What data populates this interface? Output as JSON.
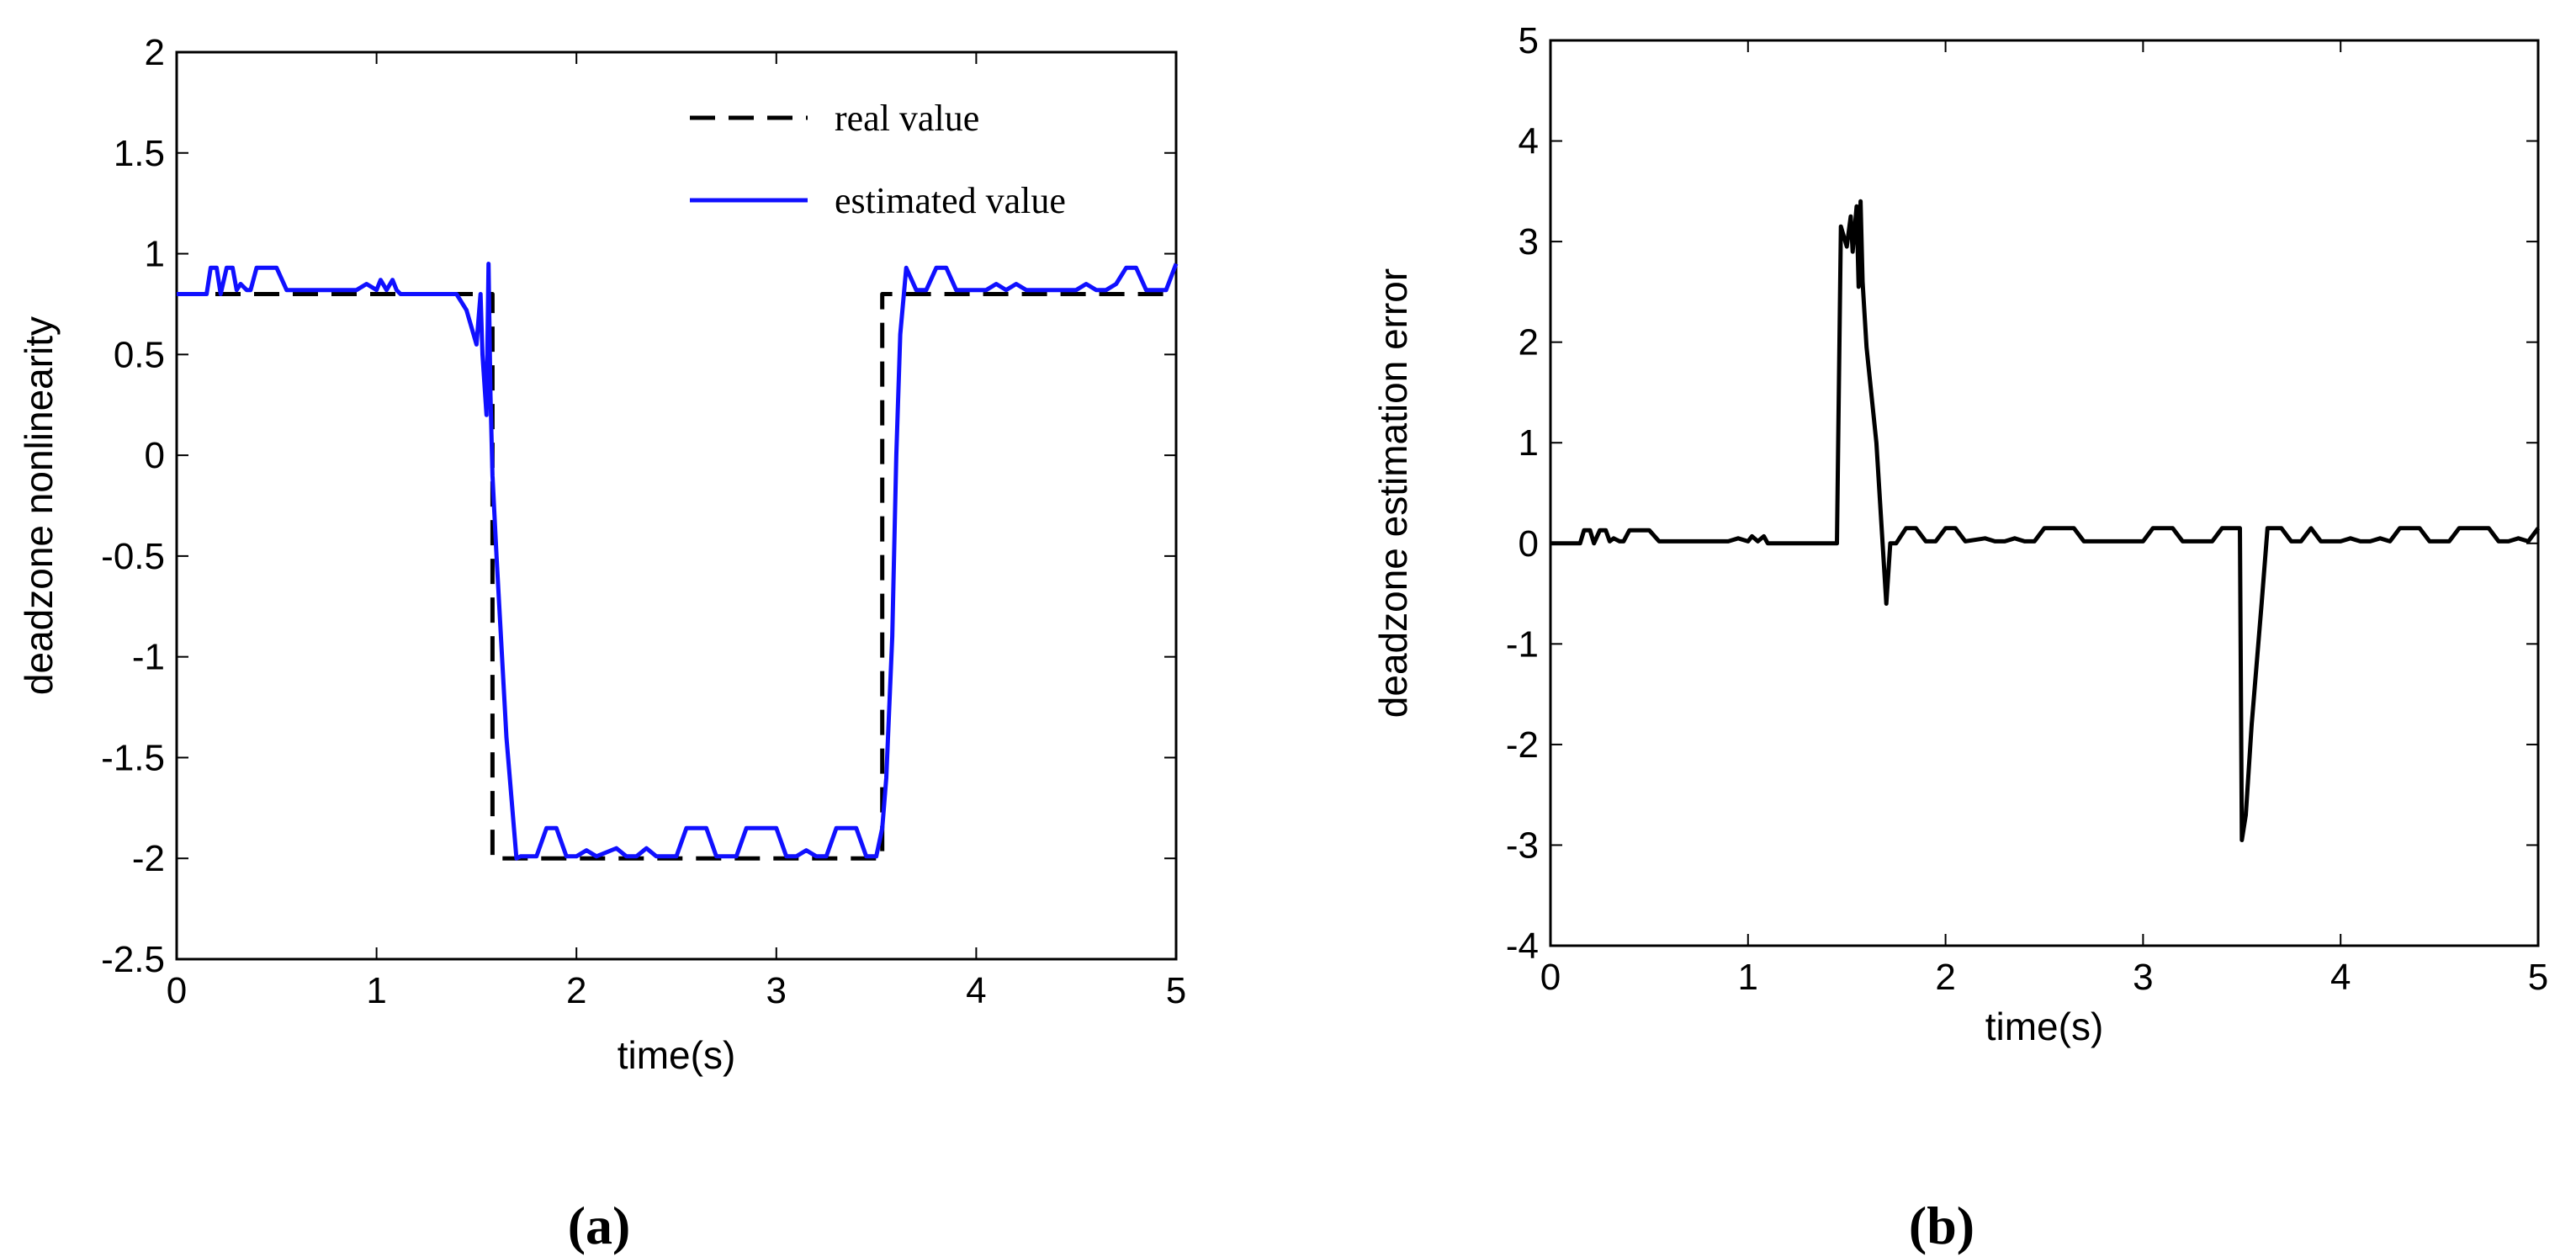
{
  "chart_data": [
    {
      "type": "line",
      "caption": "(a)",
      "title": "",
      "xlabel": "time(s)",
      "ylabel": "deadzone nonlinearity",
      "xlim": [
        0,
        5
      ],
      "ylim": [
        -2.5,
        2
      ],
      "xticks": [
        0,
        1,
        2,
        3,
        4,
        5
      ],
      "yticks": [
        -2.5,
        -2,
        -1.5,
        -1,
        -0.5,
        0,
        0.5,
        1,
        1.5,
        2
      ],
      "xtick_labels": [
        "0",
        "1",
        "2",
        "3",
        "4",
        "5"
      ],
      "ytick_labels": [
        "-2.5",
        "-2",
        "-1.5",
        "-1",
        "-0.5",
        "0",
        "0.5",
        "1",
        "1.5",
        "2"
      ],
      "grid": false,
      "legend_position": "top-right",
      "series": [
        {
          "name": "real value",
          "color": "#000000",
          "style": "dashed",
          "x": [
            0,
            1.58,
            1.58,
            3.53,
            3.53,
            5
          ],
          "y": [
            0.8,
            0.8,
            -2.0,
            -2.0,
            0.8,
            0.8
          ]
        },
        {
          "name": "estimated value",
          "color": "#1010ff",
          "style": "solid",
          "x": [
            0,
            0.15,
            0.17,
            0.2,
            0.22,
            0.25,
            0.28,
            0.3,
            0.32,
            0.35,
            0.37,
            0.4,
            0.45,
            0.47,
            0.5,
            0.55,
            0.58,
            0.6,
            0.7,
            0.8,
            0.9,
            0.95,
            1.0,
            1.02,
            1.05,
            1.08,
            1.1,
            1.12,
            1.2,
            1.3,
            1.4,
            1.45,
            1.5,
            1.52,
            1.53,
            1.55,
            1.56,
            1.57,
            1.58,
            1.6,
            1.65,
            1.7,
            1.72,
            1.75,
            1.8,
            1.85,
            1.9,
            1.95,
            2.0,
            2.05,
            2.1,
            2.2,
            2.25,
            2.3,
            2.35,
            2.4,
            2.45,
            2.5,
            2.55,
            2.6,
            2.65,
            2.7,
            2.75,
            2.8,
            2.85,
            2.9,
            2.95,
            3.0,
            3.05,
            3.1,
            3.15,
            3.2,
            3.25,
            3.3,
            3.35,
            3.4,
            3.45,
            3.5,
            3.53,
            3.55,
            3.58,
            3.6,
            3.62,
            3.65,
            3.7,
            3.75,
            3.8,
            3.85,
            3.9,
            3.95,
            4.0,
            4.05,
            4.1,
            4.15,
            4.2,
            4.25,
            4.3,
            4.3,
            4.35,
            4.4,
            4.45,
            4.5,
            4.55,
            4.6,
            4.65,
            4.7,
            4.75,
            4.8,
            4.85,
            4.9,
            4.95,
            5.0
          ],
          "y": [
            0.8,
            0.8,
            0.93,
            0.93,
            0.8,
            0.93,
            0.93,
            0.82,
            0.85,
            0.82,
            0.82,
            0.93,
            0.93,
            0.93,
            0.93,
            0.82,
            0.82,
            0.82,
            0.82,
            0.82,
            0.82,
            0.85,
            0.82,
            0.87,
            0.82,
            0.87,
            0.82,
            0.8,
            0.8,
            0.8,
            0.8,
            0.72,
            0.55,
            0.8,
            0.5,
            0.2,
            0.95,
            0.3,
            -0.1,
            -0.5,
            -1.4,
            -2.0,
            -1.99,
            -1.99,
            -1.99,
            -1.85,
            -1.85,
            -1.99,
            -1.99,
            -1.96,
            -1.99,
            -1.95,
            -1.99,
            -1.99,
            -1.95,
            -1.99,
            -1.99,
            -1.99,
            -1.85,
            -1.85,
            -1.85,
            -1.99,
            -1.99,
            -1.99,
            -1.85,
            -1.85,
            -1.85,
            -1.85,
            -1.99,
            -1.99,
            -1.96,
            -1.99,
            -1.99,
            -1.85,
            -1.85,
            -1.85,
            -1.99,
            -1.99,
            -1.85,
            -1.6,
            -0.9,
            0.0,
            0.6,
            0.93,
            0.82,
            0.82,
            0.93,
            0.93,
            0.82,
            0.82,
            0.82,
            0.82,
            0.85,
            0.82,
            0.85,
            0.82,
            0.82,
            0.82,
            0.82,
            0.82,
            0.82,
            0.82,
            0.85,
            0.82,
            0.82,
            0.85,
            0.93,
            0.93,
            0.82,
            0.82,
            0.82,
            0.95
          ]
        }
      ]
    },
    {
      "type": "line",
      "caption": "(b)",
      "title": "",
      "xlabel": "time(s)",
      "ylabel": "deadzone estimation error",
      "xlim": [
        0,
        5
      ],
      "ylim": [
        -4,
        5
      ],
      "xticks": [
        0,
        1,
        2,
        3,
        4,
        5
      ],
      "yticks": [
        -4,
        -3,
        -2,
        -1,
        0,
        1,
        2,
        3,
        4,
        5
      ],
      "xtick_labels": [
        "0",
        "1",
        "2",
        "3",
        "4",
        "5"
      ],
      "ytick_labels": [
        "-4",
        "-3",
        "-2",
        "-1",
        "0",
        "1",
        "2",
        "3",
        "4",
        "5"
      ],
      "grid": false,
      "legend_position": "none",
      "series": [
        {
          "name": "deadzone estimation error",
          "color": "#000000",
          "style": "solid",
          "x": [
            0,
            0.15,
            0.17,
            0.2,
            0.22,
            0.25,
            0.28,
            0.3,
            0.32,
            0.35,
            0.37,
            0.4,
            0.45,
            0.47,
            0.5,
            0.55,
            0.6,
            0.8,
            0.9,
            0.95,
            1.0,
            1.02,
            1.05,
            1.08,
            1.1,
            1.12,
            1.2,
            1.3,
            1.4,
            1.45,
            1.47,
            1.5,
            1.52,
            1.53,
            1.55,
            1.56,
            1.57,
            1.58,
            1.6,
            1.65,
            1.7,
            1.72,
            1.75,
            1.8,
            1.85,
            1.9,
            1.95,
            2.0,
            2.05,
            2.1,
            2.2,
            2.25,
            2.3,
            2.35,
            2.4,
            2.45,
            2.5,
            2.55,
            2.6,
            2.65,
            2.7,
            2.75,
            2.8,
            2.85,
            2.9,
            2.95,
            3.0,
            3.05,
            3.1,
            3.15,
            3.2,
            3.25,
            3.3,
            3.35,
            3.4,
            3.45,
            3.48,
            3.49,
            3.5,
            3.52,
            3.55,
            3.6,
            3.63,
            3.65,
            3.7,
            3.75,
            3.8,
            3.85,
            3.9,
            3.95,
            4.0,
            4.05,
            4.1,
            4.15,
            4.2,
            4.25,
            4.3,
            4.35,
            4.4,
            4.45,
            4.5,
            4.55,
            4.6,
            4.65,
            4.7,
            4.75,
            4.8,
            4.85,
            4.9,
            4.95,
            5.0
          ],
          "y": [
            0.0,
            0.0,
            0.13,
            0.13,
            0.0,
            0.13,
            0.13,
            0.02,
            0.05,
            0.02,
            0.02,
            0.13,
            0.13,
            0.13,
            0.13,
            0.02,
            0.02,
            0.02,
            0.02,
            0.05,
            0.02,
            0.07,
            0.02,
            0.07,
            0.0,
            0.0,
            0.0,
            0.0,
            0.0,
            0.0,
            3.15,
            2.95,
            3.25,
            2.9,
            3.35,
            2.55,
            3.4,
            2.6,
            1.95,
            1.0,
            -0.6,
            0.0,
            0.0,
            0.15,
            0.15,
            0.02,
            0.02,
            0.15,
            0.15,
            0.02,
            0.05,
            0.02,
            0.02,
            0.05,
            0.02,
            0.02,
            0.15,
            0.15,
            0.15,
            0.15,
            0.02,
            0.02,
            0.02,
            0.02,
            0.02,
            0.02,
            0.02,
            0.15,
            0.15,
            0.15,
            0.02,
            0.02,
            0.02,
            0.02,
            0.15,
            0.15,
            0.15,
            0.15,
            -2.95,
            -2.7,
            -1.8,
            -0.6,
            0.15,
            0.15,
            0.15,
            0.02,
            0.02,
            0.15,
            0.02,
            0.02,
            0.02,
            0.05,
            0.02,
            0.02,
            0.05,
            0.02,
            0.15,
            0.15,
            0.15,
            0.02,
            0.02,
            0.02,
            0.15,
            0.15,
            0.15,
            0.15,
            0.02,
            0.02,
            0.05,
            0.02,
            0.15
          ]
        }
      ]
    }
  ]
}
